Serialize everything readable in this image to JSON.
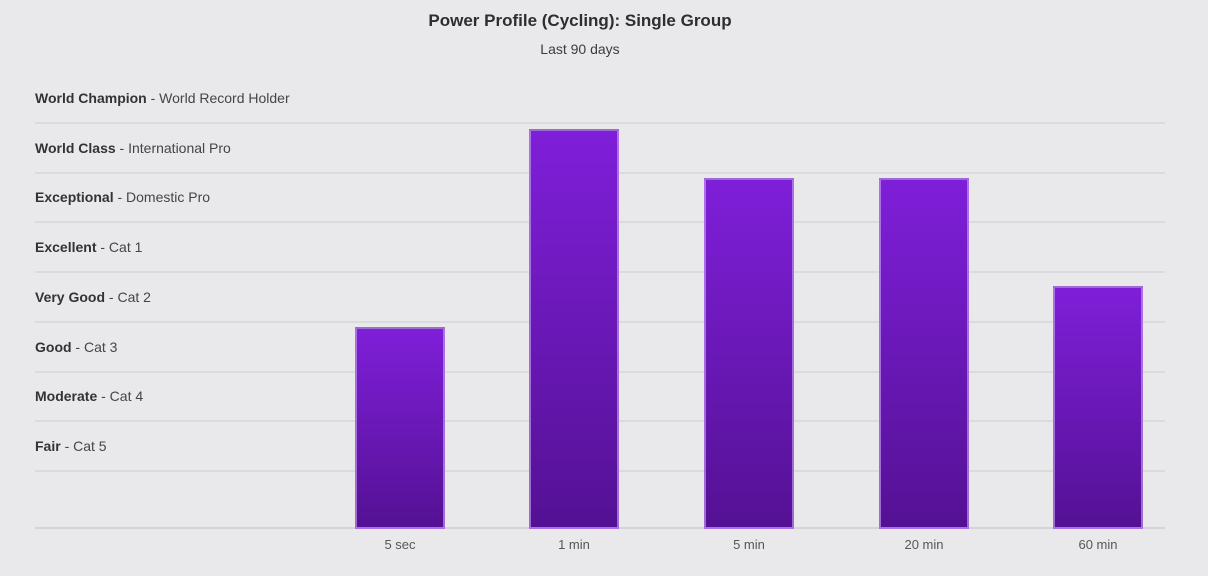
{
  "header": {
    "title": "Power Profile (Cycling): Single Group",
    "subtitle": "Last 90 days"
  },
  "chart_data": {
    "type": "bar",
    "title": "Power Profile (Cycling): Single Group",
    "subtitle": "Last 90 days",
    "xlabel": "",
    "ylabel": "",
    "legend": "none",
    "grid": "horizontal band lines",
    "categories": [
      "5 sec",
      "1 min",
      "5 min",
      "20 min",
      "60 min"
    ],
    "series": [
      {
        "name": "Power profile",
        "level_reached": [
          "Good (Cat 3)",
          "World Class (International Pro)",
          "Exceptional (Domestic Pro)",
          "Exceptional (Domestic Pro)",
          "Very Good (Cat 2)"
        ],
        "bar_height_pct_of_plot": [
          44.3,
          87.9,
          77.1,
          77.1,
          53.3
        ]
      }
    ],
    "y_bands": [
      {
        "name": "World Champion",
        "desc": "World Record Holder"
      },
      {
        "name": "World Class",
        "desc": "International Pro"
      },
      {
        "name": "Exceptional",
        "desc": "Domestic Pro"
      },
      {
        "name": "Excellent",
        "desc": "Cat 1"
      },
      {
        "name": "Very Good",
        "desc": "Cat 2"
      },
      {
        "name": "Good",
        "desc": "Cat 3"
      },
      {
        "name": "Moderate",
        "desc": "Cat 4"
      },
      {
        "name": "Fair",
        "desc": "Cat 5"
      }
    ],
    "label_separator": " - ",
    "has_unlabeled_bottom_band": true,
    "colors": {
      "bar_gradient_top": "#7f1fd9",
      "bar_gradient_bottom": "#541194",
      "bar_border": "#c49cf3",
      "background": "#e9e9eb",
      "gridline": "#dbdbde",
      "title_text": "#2e2e2e",
      "band_text": "#333333",
      "axis_text": "#55565a"
    }
  }
}
